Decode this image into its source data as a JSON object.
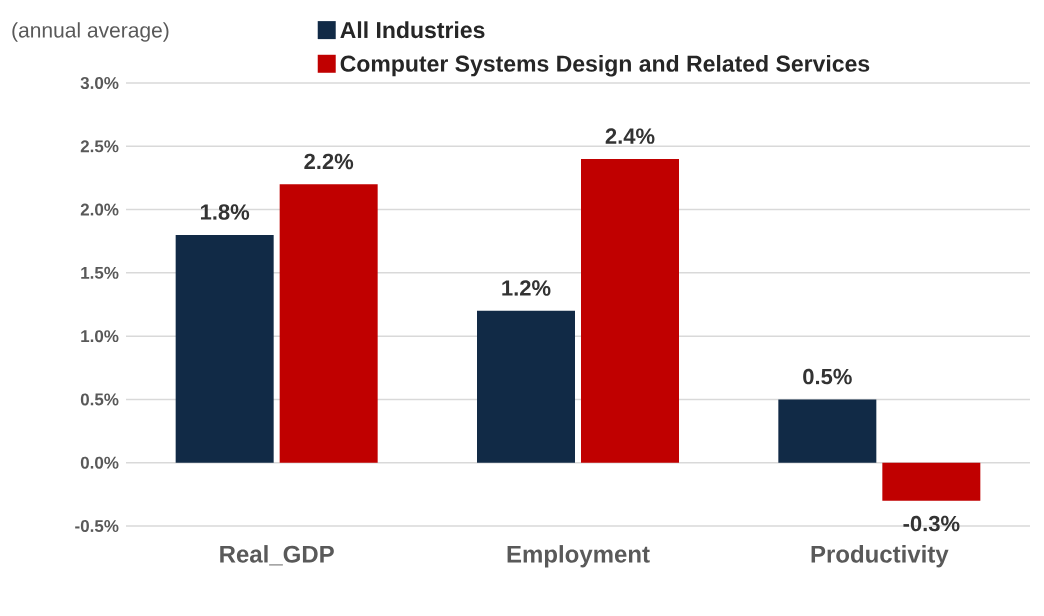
{
  "chart_data": {
    "type": "bar",
    "ylabel": "(annual average)",
    "categories": [
      "Real_GDP",
      "Employment",
      "Productivity"
    ],
    "series": [
      {
        "name": "All Industries",
        "color": "#112a46",
        "values": [
          1.8,
          1.2,
          0.5
        ],
        "value_labels": [
          "1.8%",
          "1.2%",
          "0.5%"
        ]
      },
      {
        "name": "Computer Systems Design and Related Services",
        "color": "#c00000",
        "values": [
          2.2,
          2.4,
          -0.3
        ],
        "value_labels": [
          "2.2%",
          "2.4%",
          "-0.3%"
        ]
      }
    ],
    "ylim": [
      -0.5,
      3.0
    ],
    "yticks": [
      {
        "value": -0.5,
        "label": "-0.5%"
      },
      {
        "value": 0.0,
        "label": "0.0%"
      },
      {
        "value": 0.5,
        "label": "0.5%"
      },
      {
        "value": 1.0,
        "label": "1.0%"
      },
      {
        "value": 1.5,
        "label": "1.5%"
      },
      {
        "value": 2.0,
        "label": "2.0%"
      },
      {
        "value": 2.5,
        "label": "2.5%"
      },
      {
        "value": 3.0,
        "label": "3.0%"
      }
    ],
    "grid": "y",
    "legend": "top"
  }
}
